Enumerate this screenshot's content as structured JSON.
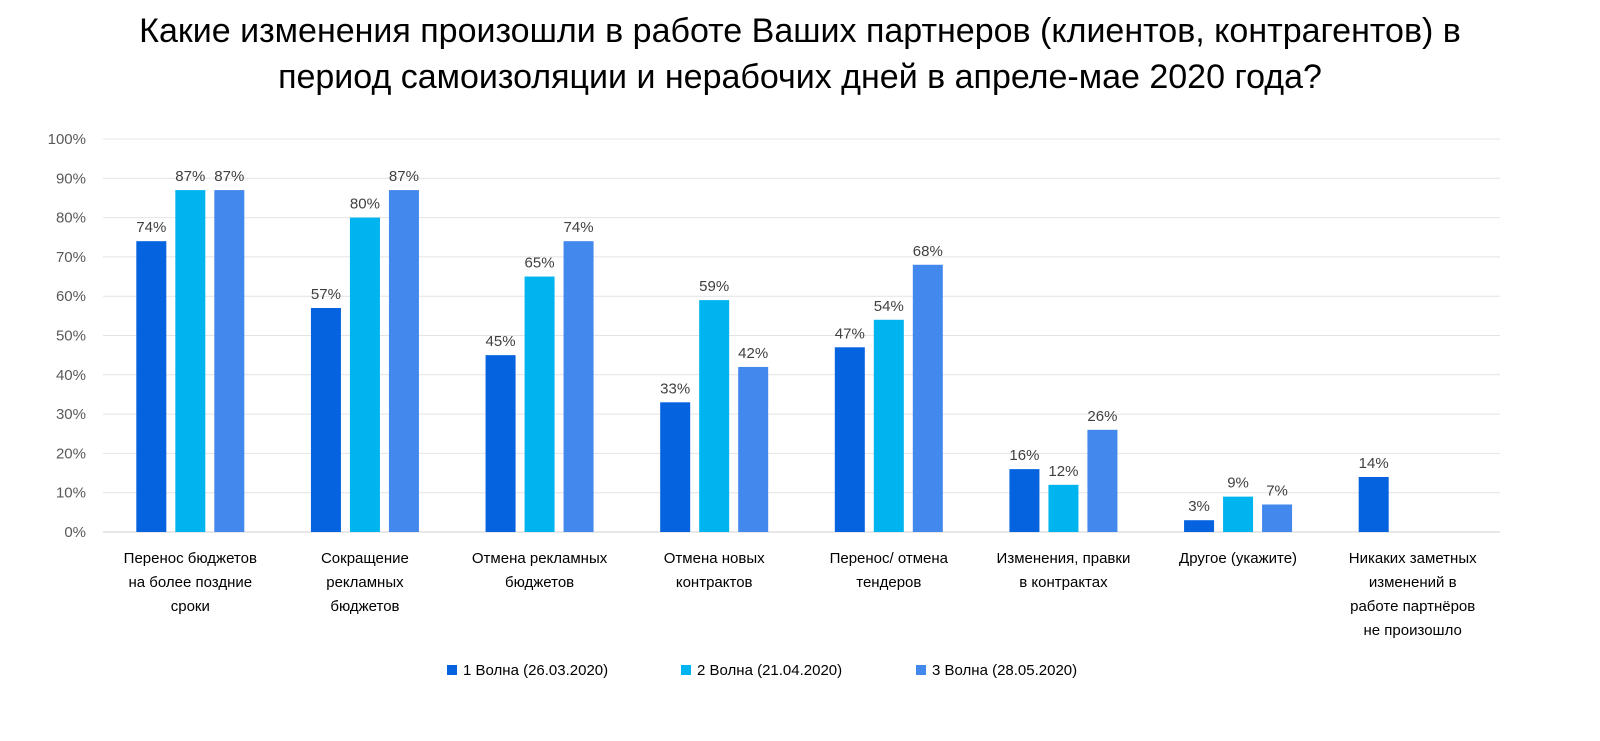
{
  "chart_data": {
    "type": "bar",
    "title": "Какие изменения произошли в работе Ваших партнеров (клиентов, контрагентов) в период самоизоляции и нерабочих дней в апреле-мае 2020 года?",
    "title_lines": [
      "Какие изменения произошли в работе Ваших партнеров (клиентов, контрагентов) в",
      "период самоизоляции и нерабочих дней в апреле-мае 2020 года?"
    ],
    "xlabel": "",
    "ylabel": "",
    "ylim": [
      0,
      100
    ],
    "y_ticks": [
      "0%",
      "10%",
      "20%",
      "30%",
      "40%",
      "50%",
      "60%",
      "70%",
      "80%",
      "90%",
      "100%"
    ],
    "grid": true,
    "legend_position": "bottom",
    "categories": [
      "Перенос бюджетов на более поздние сроки",
      "Сокращение рекламных бюджетов",
      "Отмена рекламных бюджетов",
      "Отмена новых контрактов",
      "Перенос/ отмена тендеров",
      "Изменения, правки в контрактах",
      "Другое (укажите)",
      "Никаких заметных изменений в работе партнёров не произошло"
    ],
    "category_lines": [
      [
        "Перенос бюджетов",
        "на более поздние",
        "сроки"
      ],
      [
        "Сокращение",
        "рекламных",
        "бюджетов"
      ],
      [
        "Отмена рекламных",
        "бюджетов"
      ],
      [
        "Отмена новых",
        "контрактов"
      ],
      [
        "Перенос/ отмена",
        "тендеров"
      ],
      [
        "Изменения, правки",
        "в контрактах"
      ],
      [
        "Другое (укажите)"
      ],
      [
        "Никаких заметных",
        "изменений в",
        "работе партнёров",
        "не произошло"
      ]
    ],
    "series": [
      {
        "name": "1 Волна (26.03.2020)",
        "color": "#0563E0",
        "values": [
          74,
          57,
          45,
          33,
          47,
          16,
          3,
          14
        ],
        "labels": [
          "74%",
          "57%",
          "45%",
          "33%",
          "47%",
          "16%",
          "3%",
          "14%"
        ]
      },
      {
        "name": "2 Волна (21.04.2020)",
        "color": "#00B4F0",
        "values": [
          87,
          80,
          65,
          59,
          54,
          12,
          9,
          null
        ],
        "labels": [
          "87%",
          "80%",
          "65%",
          "59%",
          "54%",
          "12%",
          "9%",
          null
        ]
      },
      {
        "name": "3 Волна (28.05.2020)",
        "color": "#4388EC",
        "values": [
          87,
          87,
          74,
          42,
          68,
          26,
          7,
          null
        ],
        "labels": [
          "87%",
          "87%",
          "74%",
          "42%",
          "68%",
          "26%",
          "7%",
          null
        ]
      }
    ]
  }
}
